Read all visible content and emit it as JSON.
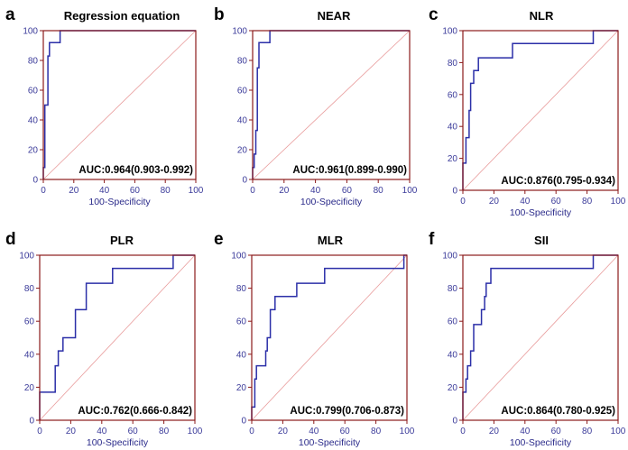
{
  "chart_data": [
    {
      "type": "line",
      "letter": "a",
      "title": "Regression equation",
      "xlabel": "100-Specificity",
      "ylabel": "",
      "xlim": [
        0,
        100
      ],
      "ylim": [
        0,
        100
      ],
      "x_ticks": [
        "0",
        "20",
        "40",
        "60",
        "80",
        "100"
      ],
      "y_ticks": [
        "0",
        "20",
        "40",
        "60",
        "80",
        "100"
      ],
      "auc_text": "AUC:0.964(0.903-0.992)",
      "series": [
        {
          "name": "ROC",
          "x": [
            0,
            0,
            1,
            1,
            3,
            3,
            4,
            4,
            6,
            6,
            11,
            11,
            100
          ],
          "y": [
            0,
            8,
            8,
            50,
            50,
            83,
            83,
            92,
            92,
            92,
            92,
            100,
            100
          ]
        },
        {
          "name": "Reference",
          "x": [
            0,
            100
          ],
          "y": [
            0,
            100
          ]
        }
      ]
    },
    {
      "type": "line",
      "letter": "b",
      "title": "NEAR",
      "xlabel": "100-Specificity",
      "ylabel": "",
      "xlim": [
        0,
        100
      ],
      "ylim": [
        0,
        100
      ],
      "x_ticks": [
        "0",
        "20",
        "40",
        "60",
        "80",
        "100"
      ],
      "y_ticks": [
        "0",
        "20",
        "40",
        "60",
        "80",
        "100"
      ],
      "auc_text": "AUC:0.961(0.899-0.990)",
      "series": [
        {
          "name": "ROC",
          "x": [
            0,
            0,
            1,
            1,
            2,
            2,
            3,
            3,
            4,
            4,
            6,
            6,
            11,
            11,
            100
          ],
          "y": [
            0,
            8,
            8,
            17,
            17,
            33,
            33,
            75,
            75,
            92,
            92,
            92,
            92,
            100,
            100
          ]
        },
        {
          "name": "Reference",
          "x": [
            0,
            100
          ],
          "y": [
            0,
            100
          ]
        }
      ]
    },
    {
      "type": "line",
      "letter": "c",
      "title": "NLR",
      "xlabel": "100-Specificity",
      "ylabel": "",
      "xlim": [
        0,
        100
      ],
      "ylim": [
        0,
        100
      ],
      "x_ticks": [
        "0",
        "20",
        "40",
        "60",
        "80",
        "100"
      ],
      "y_ticks": [
        "0",
        "20",
        "40",
        "60",
        "80",
        "100"
      ],
      "auc_text": "AUC:0.876(0.795-0.934)",
      "series": [
        {
          "name": "ROC",
          "x": [
            0,
            0,
            2,
            2,
            4,
            4,
            5,
            5,
            7,
            7,
            10,
            10,
            32,
            32,
            84,
            84,
            100
          ],
          "y": [
            0,
            17,
            17,
            33,
            33,
            50,
            50,
            67,
            67,
            75,
            75,
            83,
            83,
            92,
            92,
            100,
            100
          ]
        },
        {
          "name": "Reference",
          "x": [
            0,
            100
          ],
          "y": [
            0,
            100
          ]
        }
      ]
    },
    {
      "type": "line",
      "letter": "d",
      "title": "PLR",
      "xlabel": "100-Specificity",
      "ylabel": "",
      "xlim": [
        0,
        100
      ],
      "ylim": [
        0,
        100
      ],
      "x_ticks": [
        "0",
        "20",
        "40",
        "60",
        "80",
        "100"
      ],
      "y_ticks": [
        "0",
        "20",
        "40",
        "60",
        "80",
        "100"
      ],
      "auc_text": "AUC:0.762(0.666-0.842)",
      "series": [
        {
          "name": "ROC",
          "x": [
            0,
            0,
            1,
            1,
            10,
            10,
            12,
            12,
            15,
            15,
            23,
            23,
            30,
            30,
            47,
            47,
            86,
            86,
            100
          ],
          "y": [
            0,
            17,
            17,
            17,
            17,
            33,
            33,
            42,
            42,
            50,
            50,
            67,
            67,
            83,
            83,
            92,
            92,
            100,
            100
          ]
        },
        {
          "name": "Reference",
          "x": [
            0,
            100
          ],
          "y": [
            0,
            100
          ]
        }
      ]
    },
    {
      "type": "line",
      "letter": "e",
      "title": "MLR",
      "xlabel": "100-Specificity",
      "ylabel": "",
      "xlim": [
        0,
        100
      ],
      "ylim": [
        0,
        100
      ],
      "x_ticks": [
        "0",
        "20",
        "40",
        "60",
        "80",
        "100"
      ],
      "y_ticks": [
        "0",
        "20",
        "40",
        "60",
        "80",
        "100"
      ],
      "auc_text": "AUC:0.799(0.706-0.873)",
      "series": [
        {
          "name": "ROC",
          "x": [
            0,
            0,
            2,
            2,
            3,
            3,
            9,
            9,
            10,
            10,
            12,
            12,
            15,
            15,
            20,
            20,
            29,
            29,
            47,
            47,
            98,
            98,
            100
          ],
          "y": [
            0,
            8,
            8,
            25,
            25,
            33,
            33,
            42,
            42,
            50,
            50,
            67,
            67,
            75,
            75,
            75,
            75,
            83,
            83,
            92,
            92,
            100,
            100
          ]
        },
        {
          "name": "Reference",
          "x": [
            0,
            100
          ],
          "y": [
            0,
            100
          ]
        }
      ]
    },
    {
      "type": "line",
      "letter": "f",
      "title": "SII",
      "xlabel": "100-Specificity",
      "ylabel": "",
      "xlim": [
        0,
        100
      ],
      "ylim": [
        0,
        100
      ],
      "x_ticks": [
        "0",
        "20",
        "40",
        "60",
        "80",
        "100"
      ],
      "y_ticks": [
        "0",
        "20",
        "40",
        "60",
        "80",
        "100"
      ],
      "auc_text": "AUC:0.864(0.780-0.925)",
      "series": [
        {
          "name": "ROC",
          "x": [
            0,
            0,
            2,
            2,
            3,
            3,
            5,
            5,
            7,
            7,
            12,
            12,
            14,
            14,
            15,
            15,
            18,
            18,
            84,
            84,
            100
          ],
          "y": [
            0,
            17,
            17,
            25,
            25,
            33,
            33,
            42,
            42,
            58,
            58,
            67,
            67,
            75,
            75,
            83,
            83,
            92,
            92,
            100,
            100
          ]
        },
        {
          "name": "Reference",
          "x": [
            0,
            100
          ],
          "y": [
            0,
            100
          ]
        }
      ]
    }
  ]
}
